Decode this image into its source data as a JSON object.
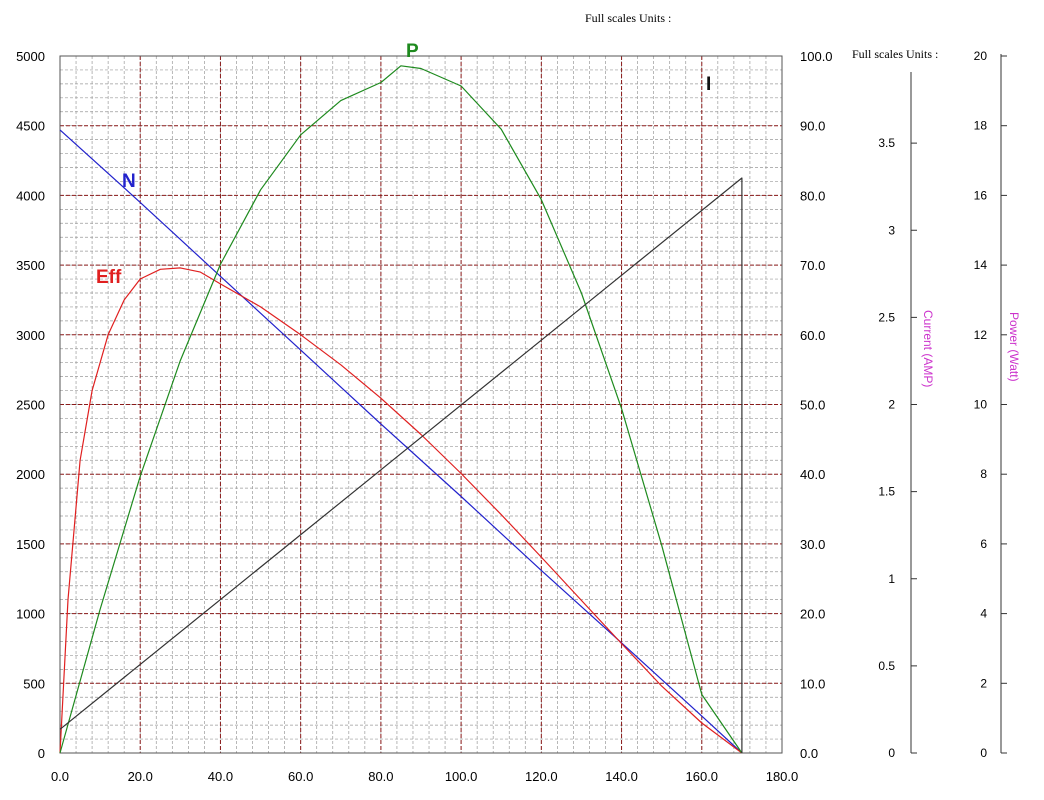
{
  "chart_data": {
    "type": "line",
    "header_top": "Full scales Units :",
    "header_right": "Full scales Units :",
    "xlim": [
      0,
      180
    ],
    "x_ticks": [
      "0.0",
      "20.0",
      "40.0",
      "60.0",
      "80.0",
      "100.0",
      "120.0",
      "140.0",
      "160.0",
      "180.0"
    ],
    "left_axis": {
      "ylim": [
        0,
        5000
      ],
      "ticks": [
        "0",
        "500",
        "1000",
        "1500",
        "2000",
        "2500",
        "3000",
        "3500",
        "4000",
        "4500",
        "5000"
      ]
    },
    "right_axis": {
      "ylim": [
        0,
        100
      ],
      "ticks": [
        "0.0",
        "10.0",
        "20.0",
        "30.0",
        "40.0",
        "50.0",
        "60.0",
        "70.0",
        "80.0",
        "90.0",
        "100.0"
      ]
    },
    "current_axis": {
      "label": "Current (AMP)",
      "ylim": [
        0,
        4
      ],
      "ticks": [
        "0",
        "0.5",
        "1",
        "1.5",
        "2",
        "2.5",
        "3",
        "3.5"
      ]
    },
    "power_axis": {
      "label": "Power (Watt)",
      "ylim": [
        0,
        20
      ],
      "ticks": [
        "0",
        "2",
        "4",
        "6",
        "8",
        "10",
        "12",
        "14",
        "16",
        "18",
        "20"
      ]
    },
    "grid": true,
    "series": [
      {
        "name": "N",
        "color": "#2222cc",
        "axis": "left",
        "x": [
          0,
          20,
          40,
          60,
          80,
          100,
          120,
          140,
          160,
          170
        ],
        "y": [
          4470,
          3950,
          3420,
          2890,
          2360,
          1840,
          1310,
          790,
          265,
          0
        ]
      },
      {
        "name": "Eff",
        "color": "#e02020",
        "axis": "right",
        "x": [
          0,
          2,
          5,
          8,
          12,
          16,
          20,
          25,
          30,
          35,
          40,
          50,
          60,
          70,
          80,
          90,
          100,
          110,
          120,
          130,
          140,
          150,
          160,
          170
        ],
        "y": [
          0,
          22,
          42,
          52,
          60,
          65,
          68,
          69.4,
          69.6,
          69,
          67.3,
          64,
          60,
          55.7,
          50.9,
          45.7,
          40.1,
          34.2,
          28.1,
          21.9,
          15.7,
          9.6,
          4.3,
          0
        ]
      },
      {
        "name": "P",
        "color": "#1e8a1e",
        "axis": "right",
        "x": [
          0,
          10,
          20,
          30,
          40,
          50,
          60,
          70,
          80,
          85,
          90,
          100,
          110,
          120,
          130,
          140,
          150,
          160,
          170
        ],
        "y": [
          0,
          20.6,
          39.7,
          56.3,
          70.1,
          80.8,
          88.7,
          93.6,
          96.2,
          98.6,
          98.2,
          95.7,
          89.5,
          79.4,
          66,
          49.4,
          29.8,
          8.4,
          0
        ]
      },
      {
        "name": "I",
        "color": "#333333",
        "axis": "right",
        "x": [
          0,
          170,
          170
        ],
        "y": [
          3.4,
          82.5,
          0
        ]
      }
    ]
  }
}
